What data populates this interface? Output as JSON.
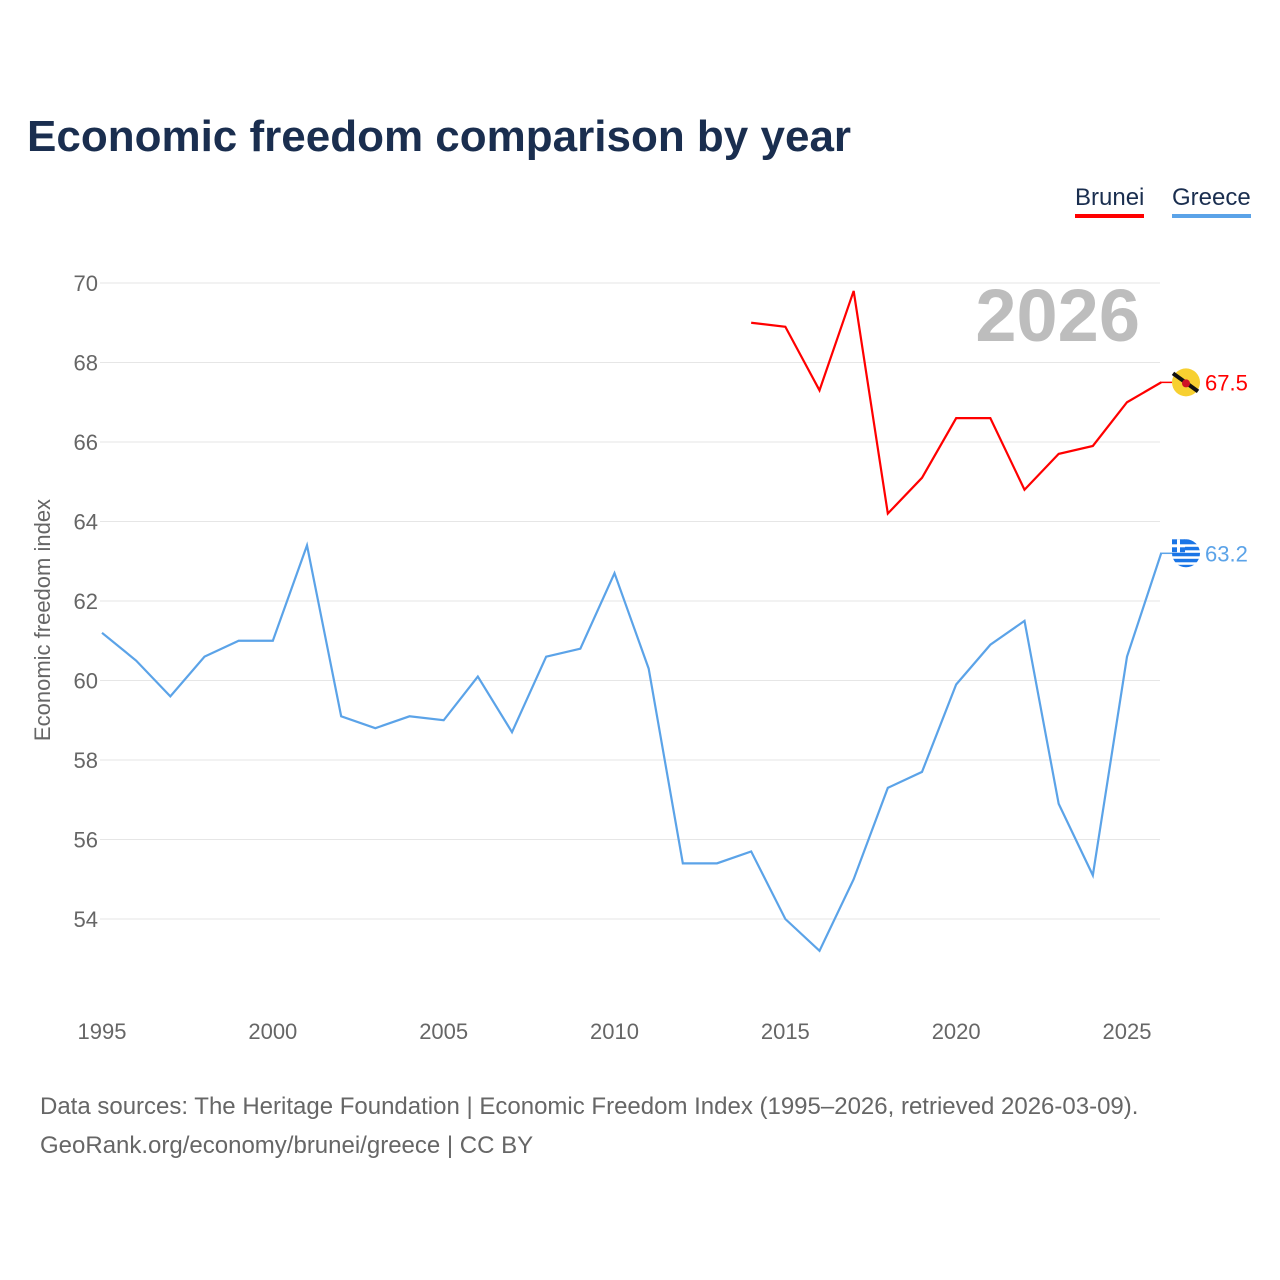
{
  "title": "Economic freedom comparison by year",
  "legend": [
    {
      "name": "Brunei",
      "color": "#ff0000"
    },
    {
      "name": "Greece",
      "color": "#5ba3e8"
    }
  ],
  "source_line1": "Data sources: The Heritage Foundation | Economic Freedom Index (1995–2026, retrieved 2026-03-09).",
  "source_line2": "GeoRank.org/economy/brunei/greece | CC BY",
  "chart_data": {
    "type": "line",
    "title": "Economic freedom comparison by year",
    "ylabel": "Economic freedom index",
    "xlabel": "",
    "year_watermark": "2026",
    "ylim": [
      54,
      70
    ],
    "xlim": [
      1995,
      2026
    ],
    "yticks": [
      54,
      56,
      58,
      60,
      62,
      64,
      66,
      68,
      70
    ],
    "xticks": [
      1995,
      2000,
      2005,
      2010,
      2015,
      2020,
      2025
    ],
    "grid": true,
    "legend_position": "top-right",
    "series": [
      {
        "name": "Brunei",
        "color": "#ff0000",
        "end_label": "67.5",
        "x": [
          2014,
          2015,
          2016,
          2017,
          2018,
          2019,
          2020,
          2021,
          2022,
          2023,
          2024,
          2025,
          2026
        ],
        "values": [
          69.0,
          68.9,
          67.3,
          69.8,
          64.2,
          65.1,
          66.6,
          66.6,
          64.8,
          65.7,
          65.9,
          67.0,
          67.5
        ]
      },
      {
        "name": "Greece",
        "color": "#5ba3e8",
        "end_label": "63.2",
        "x": [
          1995,
          1996,
          1997,
          1998,
          1999,
          2000,
          2001,
          2002,
          2003,
          2004,
          2005,
          2006,
          2007,
          2008,
          2009,
          2010,
          2011,
          2012,
          2013,
          2014,
          2015,
          2016,
          2017,
          2018,
          2019,
          2020,
          2021,
          2022,
          2023,
          2024,
          2025,
          2026
        ],
        "values": [
          61.2,
          60.5,
          59.6,
          60.6,
          61.0,
          61.0,
          63.4,
          59.1,
          58.8,
          59.1,
          59.0,
          60.1,
          58.7,
          60.6,
          60.8,
          62.7,
          60.3,
          55.4,
          55.4,
          55.7,
          54.0,
          53.2,
          55.0,
          57.3,
          57.7,
          59.9,
          60.9,
          61.5,
          56.9,
          55.1,
          60.6,
          63.2
        ]
      }
    ]
  }
}
